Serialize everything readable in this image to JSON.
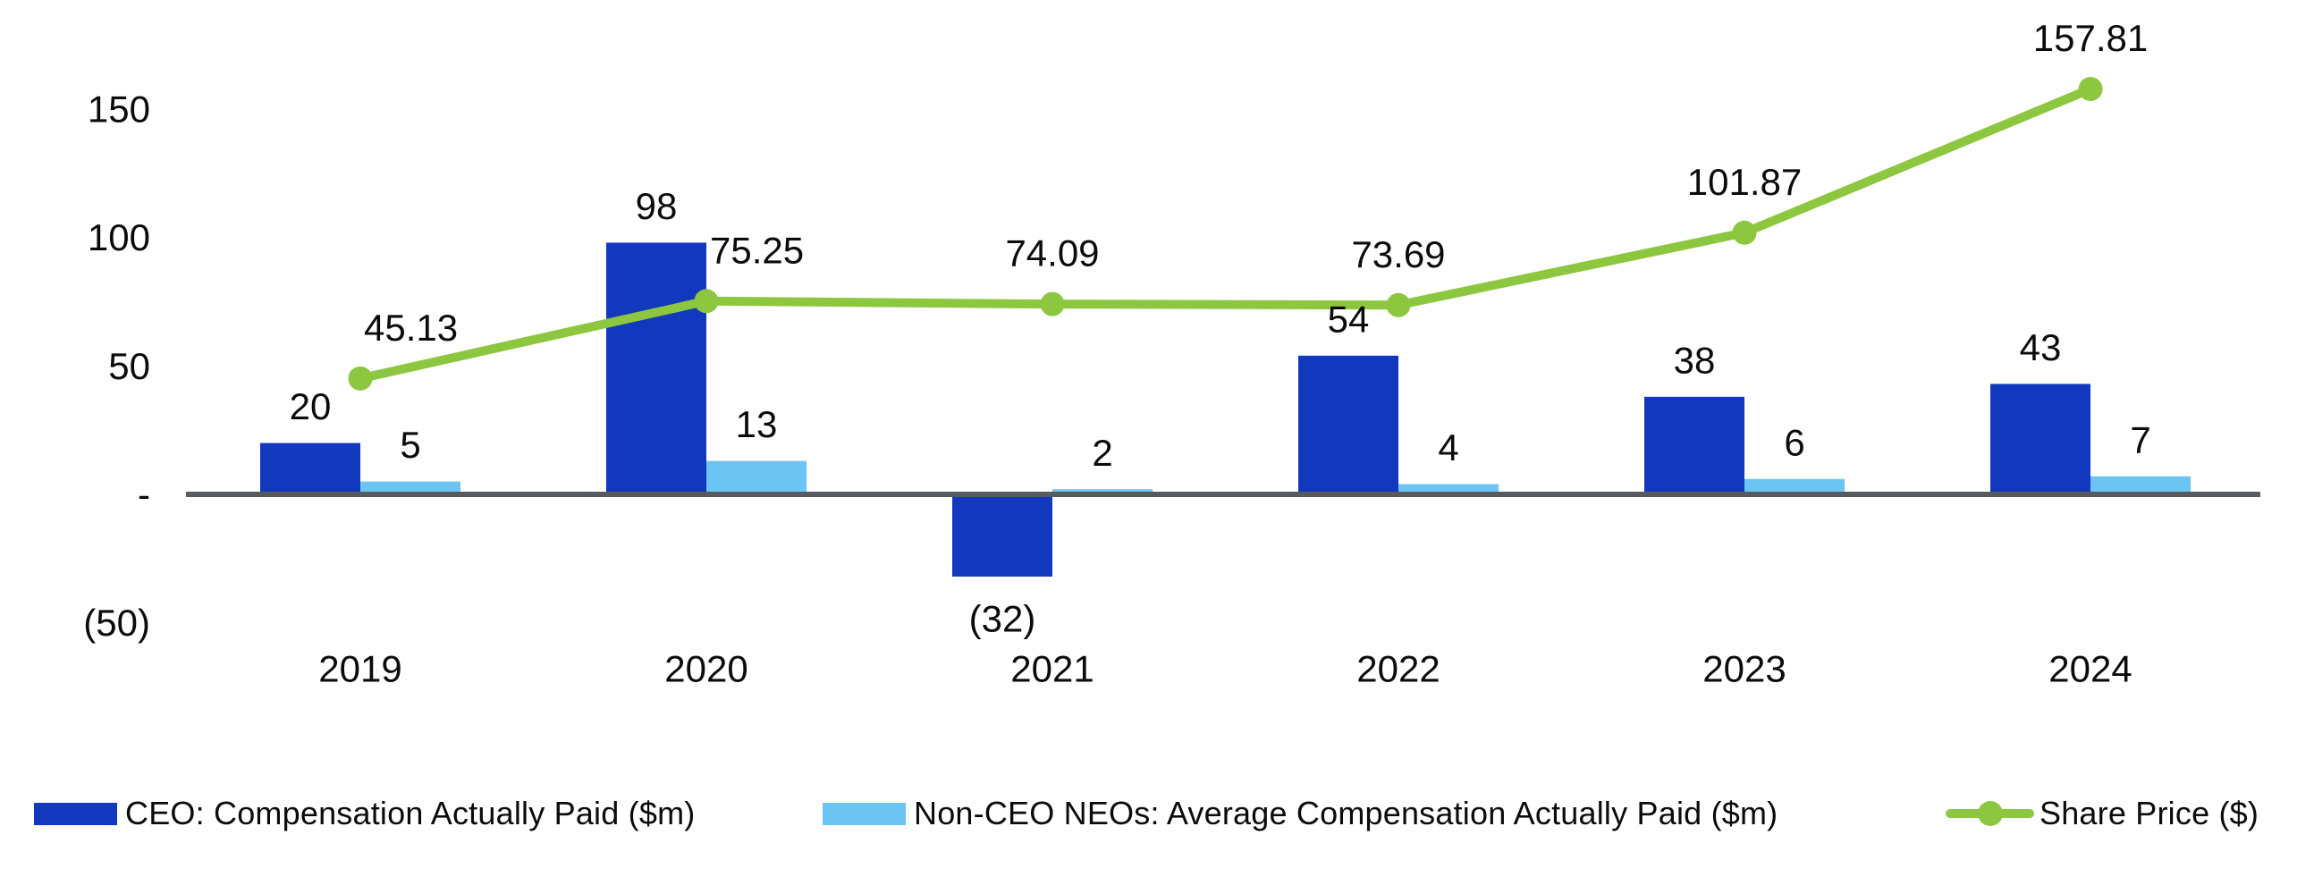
{
  "chart_data": {
    "type": "combo_bar_line",
    "title": "",
    "categories": [
      "2019",
      "2020",
      "2021",
      "2022",
      "2023",
      "2024"
    ],
    "series": [
      {
        "name": "CEO: Compensation Actually Paid ($m)",
        "type": "bar",
        "color": "#1138BD",
        "values": [
          20,
          98,
          -32,
          54,
          38,
          43
        ],
        "labels": [
          "20",
          "98",
          "(32)",
          "54",
          "38",
          "43"
        ]
      },
      {
        "name": "Non-CEO NEOs: Average Compensation Actually Paid ($m)",
        "type": "bar",
        "color": "#6BC4F2",
        "values": [
          5,
          13,
          2,
          4,
          6,
          7
        ],
        "labels": [
          "5",
          "13",
          "2",
          "4",
          "6",
          "7"
        ]
      },
      {
        "name": "Share Price ($)",
        "type": "line",
        "color": "#8DC63F",
        "values": [
          45.13,
          75.25,
          74.09,
          73.69,
          101.87,
          157.81
        ],
        "labels": [
          "45.13",
          "75.25",
          "74.09",
          "73.69",
          "101.87",
          "157.81"
        ]
      }
    ],
    "y_axis": {
      "ticks": [
        {
          "value": 150,
          "label": "150"
        },
        {
          "value": 100,
          "label": "100"
        },
        {
          "value": 50,
          "label": "50"
        },
        {
          "value": 0,
          "label": "-"
        },
        {
          "value": -50,
          "label": "(50)"
        }
      ],
      "range": [
        -50,
        170
      ]
    },
    "xlabel": "",
    "ylabel": "",
    "grid": false,
    "legend_position": "bottom",
    "axis_line_color": "#575A5F",
    "text_color": "#0B0B0B",
    "background_color": "#FFFFFF"
  }
}
